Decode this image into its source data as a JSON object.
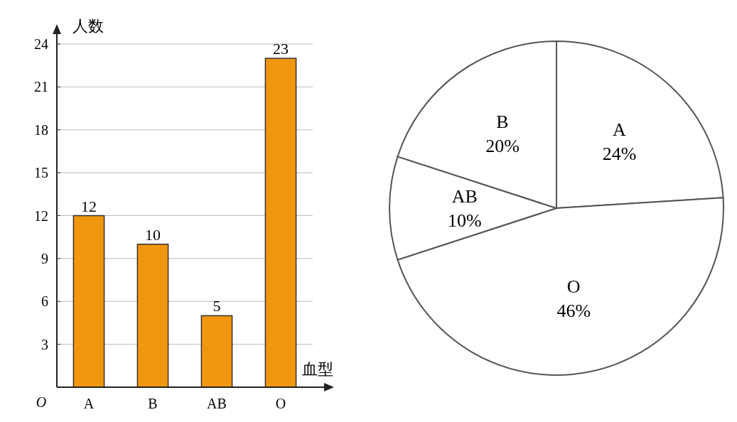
{
  "chart_data": [
    {
      "type": "bar",
      "ylabel": "人数",
      "xlabel": "血型",
      "categories": [
        "A",
        "B",
        "AB",
        "O"
      ],
      "values": [
        12,
        10,
        5,
        23
      ],
      "color": "#f0960f",
      "ylim": [
        0,
        24
      ],
      "annotations": [
        "O"
      ],
      "yticks": [
        3,
        6,
        9,
        12,
        15,
        18,
        21,
        24
      ],
      "grid": "y",
      "data_labels": true
    },
    {
      "type": "pie",
      "categories": [
        "A",
        "O",
        "AB",
        "B"
      ],
      "values": [
        24,
        46,
        10,
        20
      ],
      "value_labels": [
        "24%",
        "46%",
        "10%",
        "20%"
      ],
      "colors": [
        "#ffffff",
        "#ffffff",
        "#ffffff",
        "#ffffff"
      ]
    }
  ]
}
